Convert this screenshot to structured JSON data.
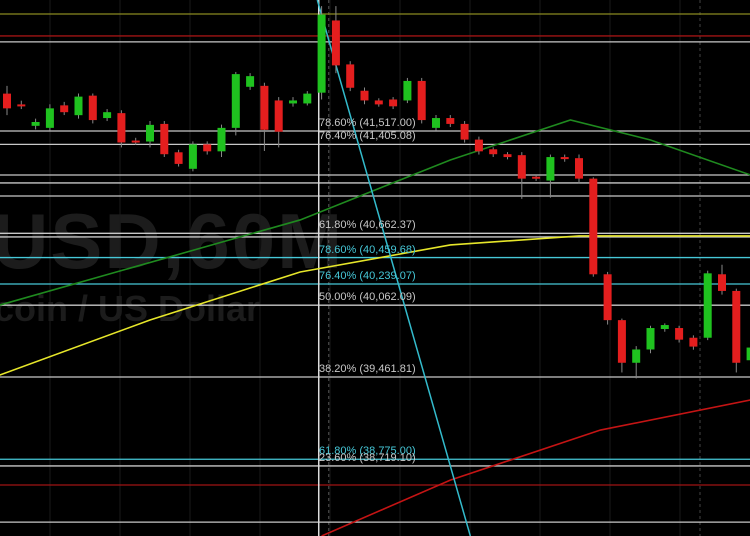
{
  "watermark": {
    "symbol": "USD,60M",
    "description": "coin / US Dollar"
  },
  "colors": {
    "background": "#000000",
    "up": "#1fc21f",
    "down": "#e41e1e",
    "ma_green": "#1f8a1f",
    "ma_yellow": "#e6e62a",
    "ma_red": "#c41414",
    "trendline": "#33bbcc",
    "fib_white": "#c8c8c8",
    "fib_cyan": "#46c8d8"
  },
  "chart_data": {
    "type": "candlestick",
    "title": "",
    "ylim": [
      38134,
      42611
    ],
    "grid": true,
    "candles": [
      [
        41829,
        41894,
        41649,
        41706
      ],
      [
        41739,
        41770,
        41700,
        41723
      ],
      [
        41560,
        41620,
        41530,
        41592
      ],
      [
        41543,
        41740,
        41520,
        41706
      ],
      [
        41731,
        41760,
        41650,
        41674
      ],
      [
        41649,
        41830,
        41620,
        41804
      ],
      [
        41812,
        41830,
        41580,
        41608
      ],
      [
        41625,
        41700,
        41600,
        41674
      ],
      [
        41666,
        41690,
        41380,
        41421
      ],
      [
        41437,
        41460,
        41400,
        41421
      ],
      [
        41429,
        41600,
        41380,
        41568
      ],
      [
        41576,
        41600,
        41300,
        41323
      ],
      [
        41339,
        41360,
        41220,
        41242
      ],
      [
        41201,
        41430,
        41180,
        41405
      ],
      [
        41405,
        41430,
        41320,
        41347
      ],
      [
        41347,
        41570,
        41300,
        41543
      ],
      [
        41543,
        42010,
        41480,
        41992
      ],
      [
        41886,
        42000,
        41860,
        41975
      ],
      [
        41894,
        41920,
        41350,
        41527
      ],
      [
        41772,
        41800,
        41380,
        41511
      ],
      [
        41747,
        41800,
        41720,
        41772
      ],
      [
        41747,
        41850,
        41730,
        41829
      ],
      [
        41837,
        42560,
        41780,
        42489
      ],
      [
        42440,
        42560,
        42000,
        42065
      ],
      [
        42073,
        42100,
        41850,
        41878
      ],
      [
        41853,
        41880,
        41740,
        41772
      ],
      [
        41772,
        41790,
        41720,
        41739
      ],
      [
        41780,
        41800,
        41700,
        41723
      ],
      [
        41772,
        41960,
        41750,
        41935
      ],
      [
        41935,
        41960,
        41580,
        41608
      ],
      [
        41543,
        41650,
        41520,
        41625
      ],
      [
        41625,
        41650,
        41550,
        41576
      ],
      [
        41576,
        41600,
        41420,
        41445
      ],
      [
        41445,
        41470,
        41320,
        41347
      ],
      [
        41364,
        41380,
        41300,
        41323
      ],
      [
        41323,
        41340,
        41280,
        41299
      ],
      [
        41315,
        41340,
        40950,
        41119
      ],
      [
        41135,
        41150,
        41100,
        41119
      ],
      [
        41103,
        41320,
        40960,
        41299
      ],
      [
        41299,
        41320,
        41260,
        41282
      ],
      [
        41290,
        41320,
        41080,
        41119
      ],
      [
        41119,
        41130,
        40300,
        40320
      ],
      [
        40320,
        40340,
        39900,
        39937
      ],
      [
        39937,
        39950,
        39500,
        39581
      ],
      [
        39581,
        39720,
        39450,
        39692
      ],
      [
        39692,
        39890,
        39660,
        39871
      ],
      [
        39863,
        39910,
        39840,
        39896
      ],
      [
        39871,
        39890,
        39750,
        39774
      ],
      [
        39790,
        39810,
        39690,
        39716
      ],
      [
        39790,
        40350,
        39770,
        40328
      ],
      [
        40320,
        40400,
        40150,
        40181
      ],
      [
        40181,
        40200,
        39500,
        39581
      ],
      [
        39602,
        39730,
        39560,
        39708
      ]
    ],
    "moving_averages": [
      {
        "color": "#1f8a1f",
        "points": [
          [
            -0.5,
            40063
          ],
          [
            20.5,
            40774
          ],
          [
            31,
            41275
          ],
          [
            39.4,
            41609
          ],
          [
            45,
            41442
          ],
          [
            52,
            41149
          ]
        ]
      },
      {
        "color": "#e6e62a",
        "points": [
          [
            -0.5,
            39479
          ],
          [
            10,
            39938
          ],
          [
            20.5,
            40339
          ],
          [
            31,
            40565
          ],
          [
            40,
            40640
          ],
          [
            52,
            40640
          ]
        ]
      },
      {
        "color": "#c41414",
        "points": [
          [
            22,
            38134
          ],
          [
            31,
            38601
          ],
          [
            41.5,
            39019
          ],
          [
            52,
            39270
          ]
        ]
      }
    ],
    "trendline": {
      "color": "#33bbcc",
      "points": [
        [
          21.7,
          42611
        ],
        [
          32.4,
          38134
        ]
      ]
    },
    "fib_levels": [
      {
        "label": "78.60% (41,517.00)",
        "price": 41517.0,
        "color": "#c8c8c8"
      },
      {
        "label": "76.40% (41,405.08)",
        "price": 41405.08,
        "color": "#c8c8c8"
      },
      {
        "label": "61.80% (40,662.37)",
        "price": 40662.37,
        "color": "#c8c8c8"
      },
      {
        "label": "78.60% (40,459.68)",
        "price": 40459.68,
        "color": "#46c8d8"
      },
      {
        "label": "76.40% (40,239.07)",
        "price": 40239.07,
        "color": "#46c8d8"
      },
      {
        "label": "50.00% (40,062.09)",
        "price": 40062.09,
        "color": "#c8c8c8"
      },
      {
        "label": "38.20% (39,461.81)",
        "price": 39461.81,
        "color": "#c8c8c8"
      },
      {
        "label": "61.80% (38,775.00)",
        "price": 38775.0,
        "color": "#46c8d8"
      },
      {
        "label": "23.60% (38,719.10)",
        "price": 38719.1,
        "color": "#c8c8c8"
      }
    ],
    "other_levels": [
      {
        "price": 42494,
        "color": "#8a8a20"
      },
      {
        "price": 42311,
        "color": "#a01414"
      },
      {
        "price": 42261,
        "color": "#c8c8c8"
      },
      {
        "price": 41149,
        "color": "#c8c8c8"
      },
      {
        "price": 41083,
        "color": "#c8c8c8"
      },
      {
        "price": 40974,
        "color": "#c8c8c8"
      },
      {
        "price": 40632,
        "color": "#c8c8c8"
      },
      {
        "price": 38560,
        "color": "#a01414"
      },
      {
        "price": 38250,
        "color": "#c8c8c8"
      }
    ],
    "vertical_marker_bar": 21.8
  }
}
